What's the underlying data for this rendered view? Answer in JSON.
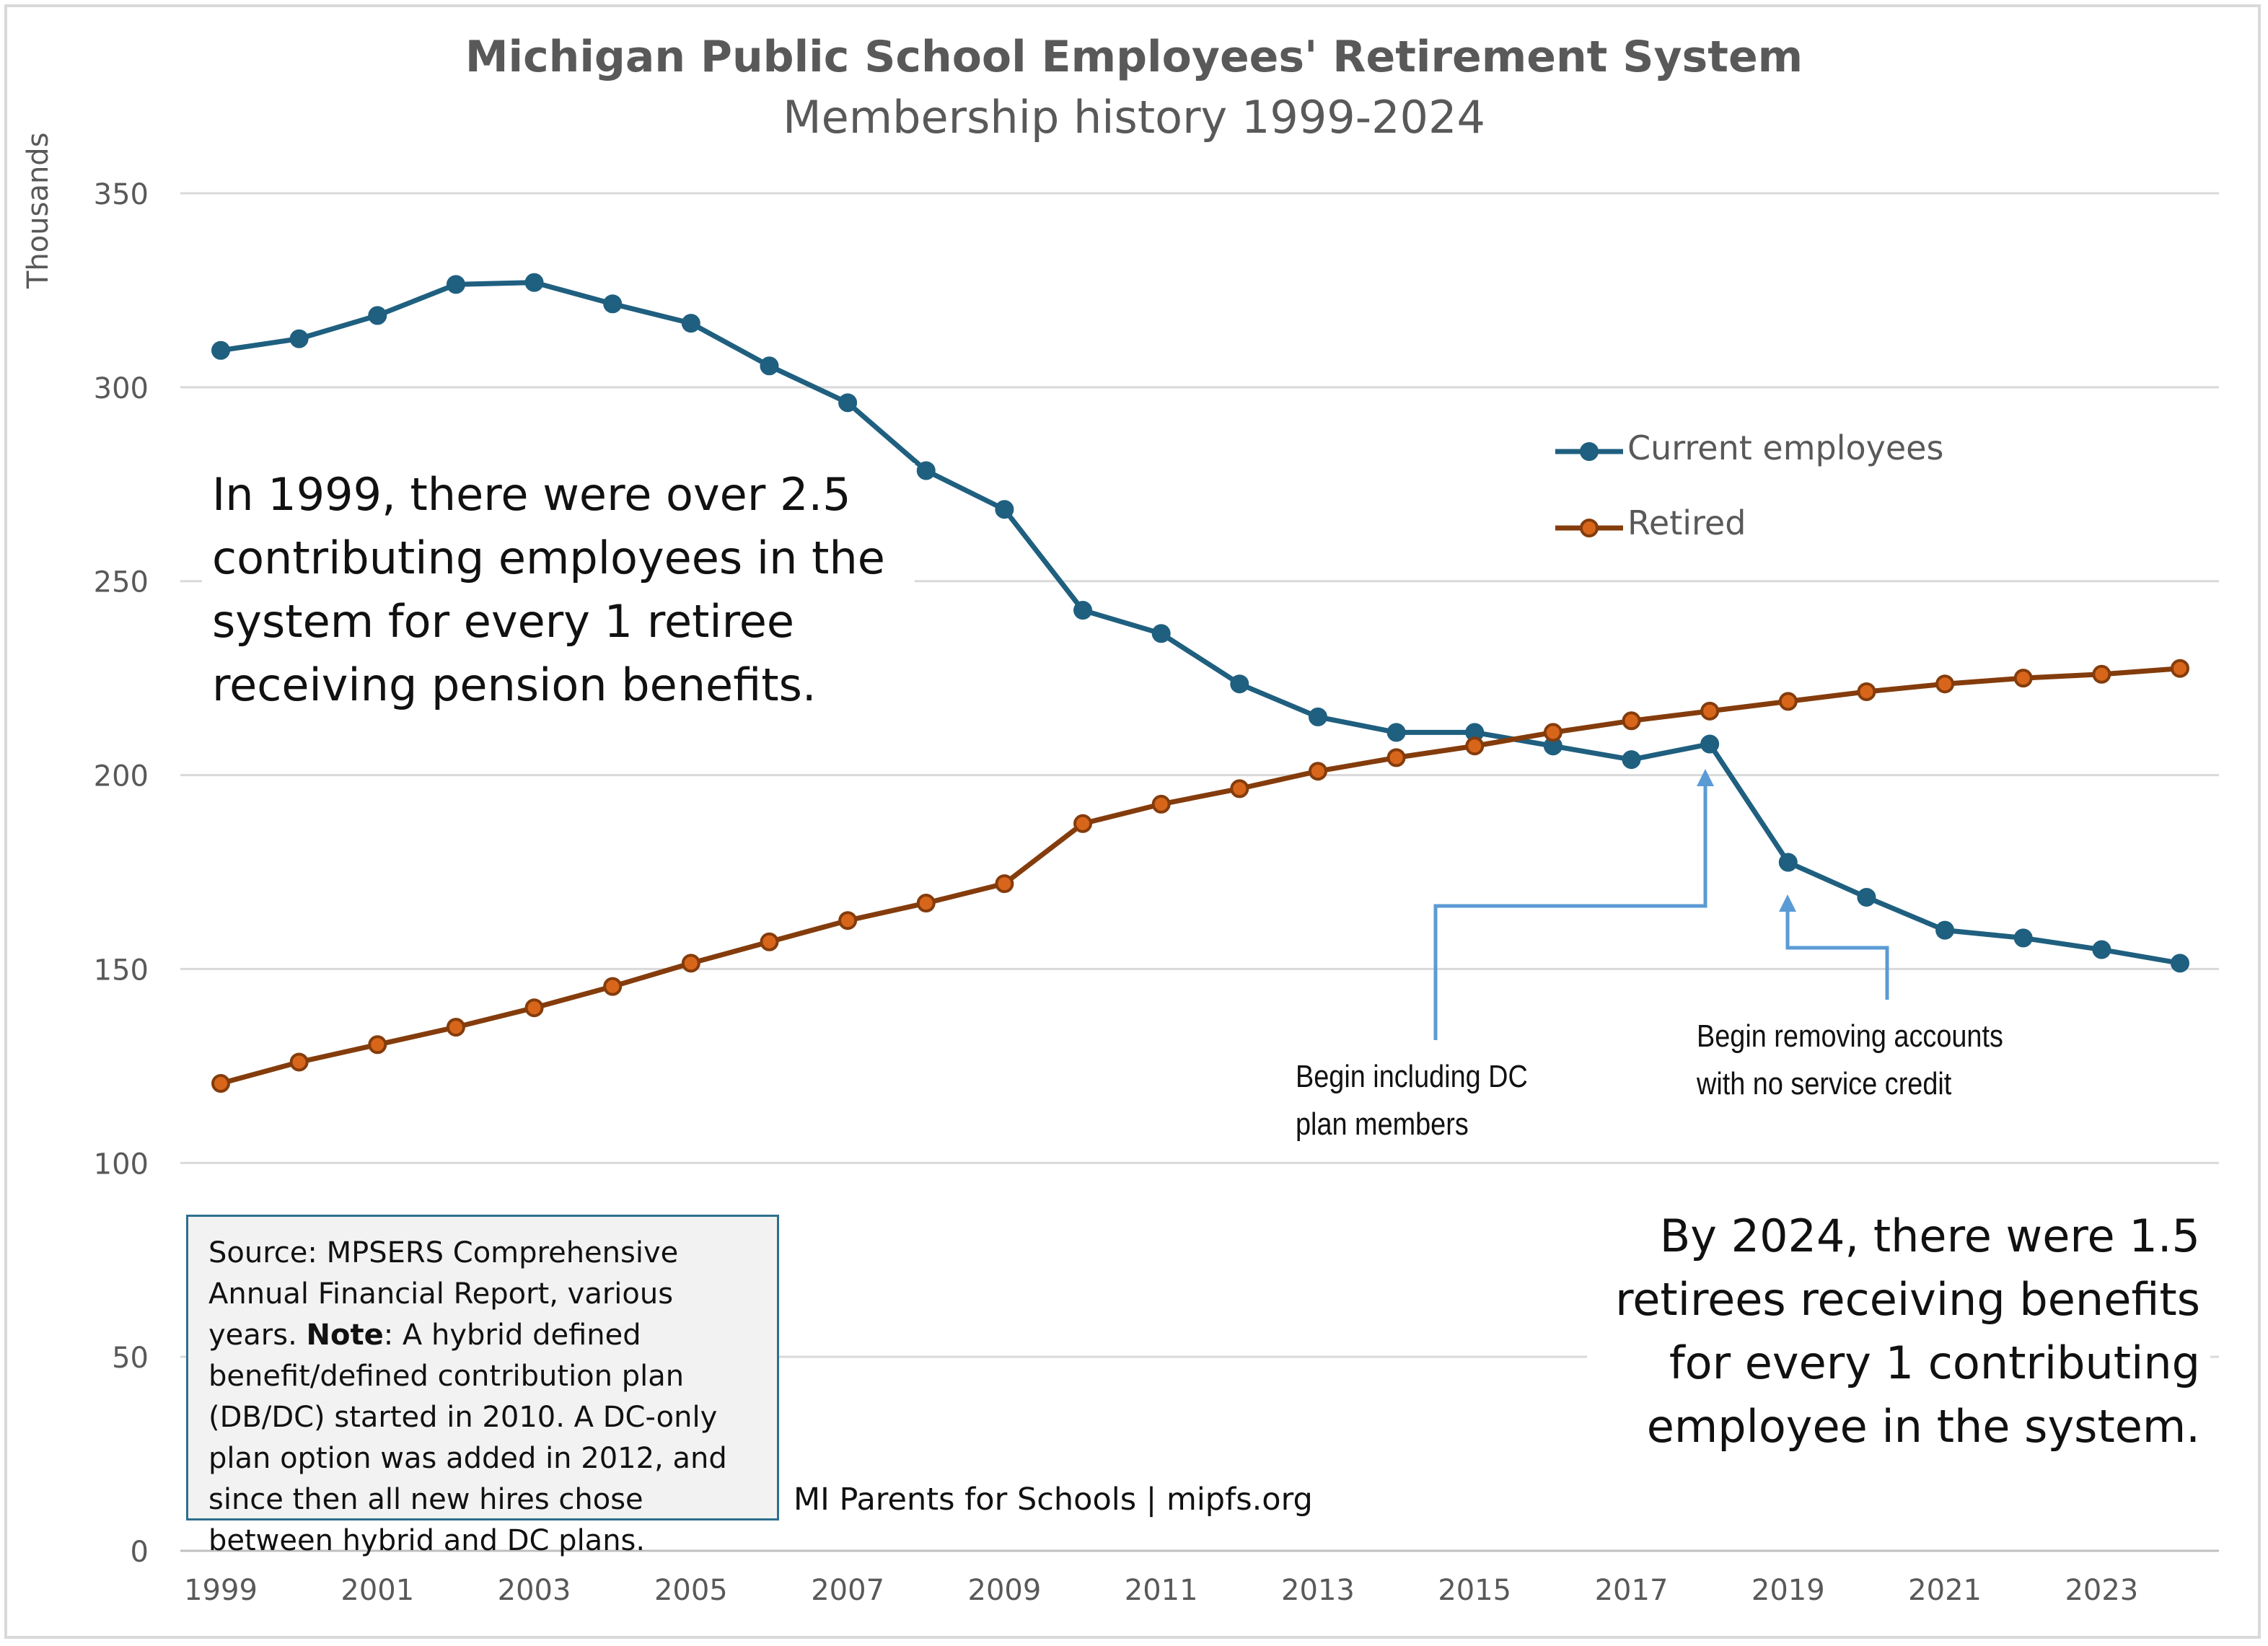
{
  "title": "Michigan Public School Employees' Retirement System",
  "subtitle": "Membership history 1999-2024",
  "ylabel": "Thousands",
  "annotation_left": "In 1999, there were over 2.5 contributing employees in the system for every 1 retiree receiving pension benefits.",
  "annotation_right": "By 2024, there were 1.5 retirees receiving benefits for every 1 contributing employee in the system.",
  "callout_dc": "Begin including DC\nplan members",
  "callout_removing": "Begin removing accounts\nwith no service credit",
  "source_lines": {
    "source": "Source: MPSERS Comprehensive Annual Financial Report, various years.",
    "note_label": "Note",
    "note": ": A hybrid defined benefit/defined contribution plan (DB/DC) started in 2010. A DC-only plan option was added in 2012, and since then all new hires chose between hybrid and DC plans."
  },
  "credit": "MI Parents for Schools | mipfs.org",
  "colors": {
    "current": "#1f5f7f",
    "retired": "#843c0c",
    "retired_marker": "#d8661a",
    "callout_arrow": "#5b9bd5",
    "grid": "#d9d9d9",
    "axis_text": "#595959"
  },
  "chart_data": {
    "type": "line",
    "x": [
      1999,
      2000,
      2001,
      2002,
      2003,
      2004,
      2005,
      2006,
      2007,
      2008,
      2009,
      2010,
      2011,
      2012,
      2013,
      2014,
      2015,
      2016,
      2017,
      2018,
      2019,
      2020,
      2021,
      2022,
      2023,
      2024
    ],
    "x_tick_labels": [
      "1999",
      "2001",
      "2003",
      "2005",
      "2007",
      "2009",
      "2011",
      "2013",
      "2015",
      "2017",
      "2019",
      "2021",
      "2023"
    ],
    "y_ticks": [
      0,
      50,
      100,
      150,
      200,
      250,
      300,
      350
    ],
    "ylim": [
      0,
      350
    ],
    "ylabel": "Thousands",
    "series": [
      {
        "name": "Current employees",
        "values": [
          309.5,
          312.5,
          318.5,
          326.5,
          327,
          321.5,
          316.5,
          305.5,
          296,
          278.5,
          268.5,
          242.5,
          236.5,
          223.5,
          215,
          211,
          211,
          207.5,
          204,
          208,
          177.5,
          168.5,
          160,
          158,
          155,
          151.5
        ]
      },
      {
        "name": "Retired",
        "values": [
          120.5,
          126,
          130.5,
          135,
          140,
          145.5,
          151.5,
          157,
          162.5,
          167,
          172,
          187.5,
          192.5,
          196.5,
          201,
          204.5,
          207.5,
          211,
          214,
          216.5,
          219,
          221.5,
          223.5,
          225,
          226,
          227.5
        ]
      }
    ],
    "legend": "right",
    "grid": true
  }
}
